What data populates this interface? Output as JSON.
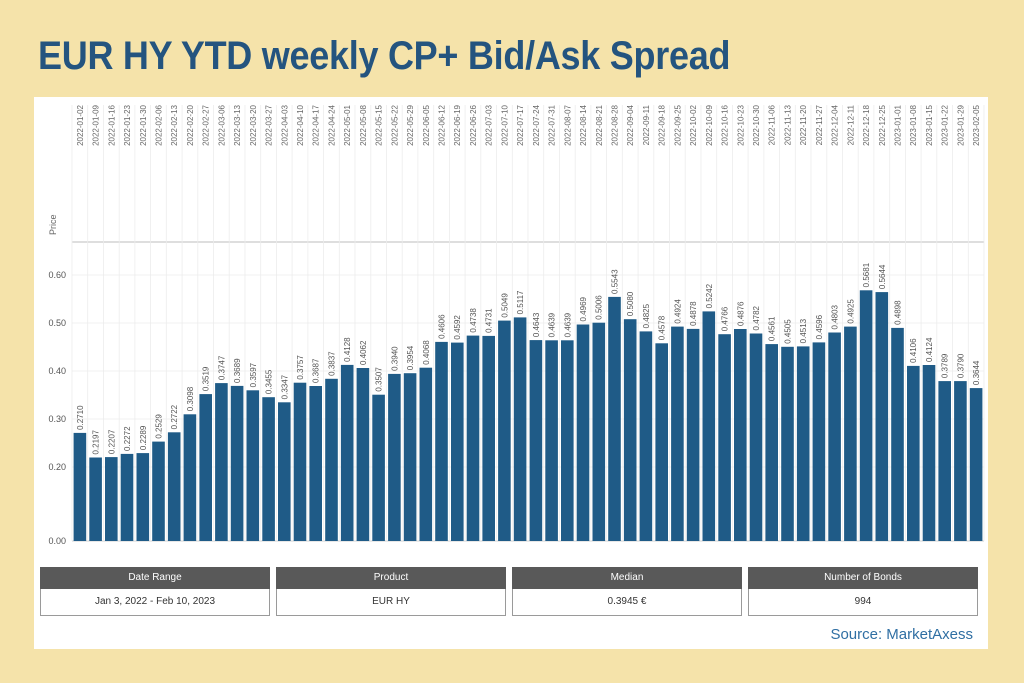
{
  "title": "EUR HY YTD weekly CP+ Bid/Ask Spread",
  "source": "Source: MarketAxess",
  "bar_color": "#1f5b87",
  "background_color": "#f5e3aa",
  "title_color": "#24547f",
  "summary": [
    {
      "header": "Date Range",
      "value": "Jan 3, 2022 - Feb 10, 2023"
    },
    {
      "header": "Product",
      "value": "EUR HY"
    },
    {
      "header": "Median",
      "value": "0.3945 €"
    },
    {
      "header": "Number of Bonds",
      "value": "994"
    }
  ],
  "chart_data": {
    "type": "bar",
    "ylabel": "Price",
    "yticks": [
      "0.00",
      "0.20",
      "0.30",
      "0.40",
      "0.50",
      "0.60"
    ],
    "grid": true,
    "categories": [
      "2022-01-02",
      "2022-01-09",
      "2022-01-16",
      "2022-01-23",
      "2022-01-30",
      "2022-02-06",
      "2022-02-13",
      "2022-02-20",
      "2022-02-27",
      "2022-03-06",
      "2022-03-13",
      "2022-03-20",
      "2022-03-27",
      "2022-04-03",
      "2022-04-10",
      "2022-04-17",
      "2022-04-24",
      "2022-05-01",
      "2022-05-08",
      "2022-05-15",
      "2022-05-22",
      "2022-05-29",
      "2022-06-05",
      "2022-06-12",
      "2022-06-19",
      "2022-06-26",
      "2022-07-03",
      "2022-07-10",
      "2022-07-17",
      "2022-07-24",
      "2022-07-31",
      "2022-08-07",
      "2022-08-14",
      "2022-08-21",
      "2022-08-28",
      "2022-09-04",
      "2022-09-11",
      "2022-09-18",
      "2022-09-25",
      "2022-10-02",
      "2022-10-09",
      "2022-10-16",
      "2022-10-23",
      "2022-10-30",
      "2022-11-06",
      "2022-11-13",
      "2022-11-20",
      "2022-11-27",
      "2022-12-04",
      "2022-12-11",
      "2022-12-18",
      "2022-12-25",
      "2023-01-01",
      "2023-01-08",
      "2023-01-15",
      "2023-01-22",
      "2023-01-29",
      "2023-02-05"
    ],
    "values": [
      0.271,
      0.2197,
      0.2207,
      0.2272,
      0.2289,
      0.2529,
      0.2722,
      0.3098,
      0.3519,
      0.3747,
      0.3689,
      0.3597,
      0.3455,
      0.3347,
      0.3757,
      0.3687,
      0.3837,
      0.4128,
      0.4062,
      0.3507,
      0.394,
      0.3954,
      0.4068,
      0.4606,
      0.4592,
      0.4738,
      0.4731,
      0.5049,
      0.5117,
      0.4643,
      0.4639,
      0.4639,
      0.4969,
      0.5006,
      0.5543,
      0.508,
      0.4825,
      0.4578,
      0.4924,
      0.4878,
      0.5242,
      0.4766,
      0.4876,
      0.4782,
      0.4561,
      0.4505,
      0.4513,
      0.4596,
      0.4803,
      0.4925,
      0.5681,
      0.5644,
      0.4898,
      0.4106,
      0.4124,
      0.3789,
      0.379,
      0.3644
    ],
    "data_labels": [
      "0.2710",
      "0.2197",
      "0.2207",
      "0.2272",
      "0.2289",
      "0.2529",
      "0.2722",
      "0.3098",
      "0.3519",
      "0.3747",
      "0.3689",
      "0.3597",
      "0.3455",
      "0.3347",
      "0.3757",
      "0.3687",
      "0.3837",
      "0.4128",
      "0.4062",
      "0.3507",
      "0.3940",
      "0.3954",
      "0.4068",
      "0.4606",
      "0.4592",
      "0.4738",
      "0.4731",
      "0.5049",
      "0.5117",
      "0.4643",
      "0.4639",
      "0.4639",
      "0.4969",
      "0.5006",
      "0.5543",
      "0.5080",
      "0.4825",
      "0.4578",
      "0.4924",
      "0.4878",
      "0.5242",
      "0.4766",
      "0.4876",
      "0.4782",
      "0.4561",
      "0.4505",
      "0.4513",
      "0.4596",
      "0.4803",
      "0.4925",
      "0.5681",
      "0.5644",
      "0.4898",
      "0.4106",
      "0.4124",
      "0.3789",
      "0.3790",
      "0.3644"
    ]
  }
}
